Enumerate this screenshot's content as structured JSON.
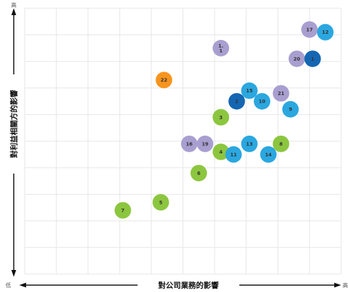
{
  "chart_data": {
    "type": "scatter",
    "xlabel": "對公司業務的影響",
    "ylabel": "對利益相關方的影響",
    "x_low": "低",
    "x_high": "高",
    "y_high": "高",
    "xlim": [
      0,
      10
    ],
    "ylim": [
      0,
      10
    ],
    "grid": true,
    "colors": {
      "purple": "#a89fd0",
      "light_blue": "#2ba7e0",
      "dark_blue": "#1566b2",
      "green": "#8cc63f",
      "orange": "#f7941d"
    },
    "points": [
      {
        "label": "1.\n1",
        "x": 6.2,
        "y": 8.5,
        "color": "purple"
      },
      {
        "label": "17",
        "x": 9.0,
        "y": 9.2,
        "color": "purple"
      },
      {
        "label": "12",
        "x": 9.5,
        "y": 9.1,
        "color": "light_blue"
      },
      {
        "label": "20",
        "x": 8.6,
        "y": 8.1,
        "color": "purple"
      },
      {
        "label": "1",
        "x": 9.1,
        "y": 8.1,
        "color": "dark_blue"
      },
      {
        "label": "22",
        "x": 4.4,
        "y": 7.3,
        "color": "orange"
      },
      {
        "label": "15",
        "x": 7.1,
        "y": 6.9,
        "color": "light_blue"
      },
      {
        "label": "21",
        "x": 8.1,
        "y": 6.8,
        "color": "purple"
      },
      {
        "label": "2",
        "x": 6.7,
        "y": 6.5,
        "color": "dark_blue"
      },
      {
        "label": "10",
        "x": 7.5,
        "y": 6.5,
        "color": "light_blue"
      },
      {
        "label": "9",
        "x": 8.4,
        "y": 6.2,
        "color": "light_blue"
      },
      {
        "label": "3",
        "x": 6.2,
        "y": 5.9,
        "color": "green"
      },
      {
        "label": "16",
        "x": 5.2,
        "y": 4.9,
        "color": "purple"
      },
      {
        "label": "19",
        "x": 5.7,
        "y": 4.9,
        "color": "purple"
      },
      {
        "label": "13",
        "x": 7.1,
        "y": 4.9,
        "color": "light_blue"
      },
      {
        "label": "8",
        "x": 8.1,
        "y": 4.9,
        "color": "green"
      },
      {
        "label": "4",
        "x": 6.2,
        "y": 4.6,
        "color": "green"
      },
      {
        "label": "11",
        "x": 6.6,
        "y": 4.5,
        "color": "light_blue"
      },
      {
        "label": "14",
        "x": 7.7,
        "y": 4.5,
        "color": "light_blue"
      },
      {
        "label": "6",
        "x": 5.5,
        "y": 3.8,
        "color": "green"
      },
      {
        "label": "5",
        "x": 4.3,
        "y": 2.7,
        "color": "green"
      },
      {
        "label": "7",
        "x": 3.1,
        "y": 2.4,
        "color": "green"
      }
    ]
  }
}
